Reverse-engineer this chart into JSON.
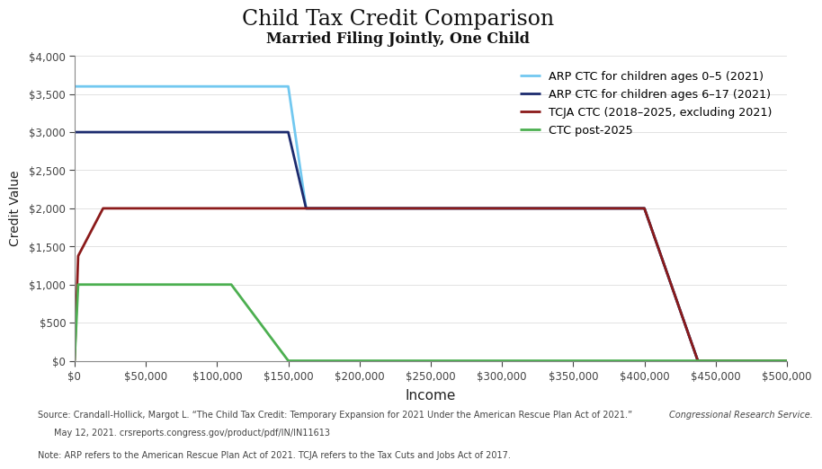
{
  "title": "Child Tax Credit Comparison",
  "subtitle": "Married Filing Jointly, One Child",
  "xlabel": "Income",
  "ylabel": "Credit Value",
  "source_line1": "Source: Crandall-Hollick, Margot L. “The Child Tax Credit: Temporary Expansion for 2021 Under the American Rescue Plan Act of 2021.”",
  "source_italic": "Congressional Research Service.",
  "source_line2": "    May 12, 2021. crsreports.congress.gov/product/pdf/IN/IN11613",
  "note_text": "Note: ARP refers to the American Rescue Plan Act of 2021. TCJA refers to the Tax Cuts and Jobs Act of 2017.",
  "xlim": [
    0,
    500000
  ],
  "ylim": [
    0,
    4000
  ],
  "series": [
    {
      "label": "ARP CTC for children ages 0–5 (2021)",
      "color": "#72C8F0",
      "linewidth": 2.0,
      "x": [
        0,
        150000,
        162500,
        400000,
        437500,
        500000
      ],
      "y": [
        3600,
        3600,
        2000,
        2000,
        0,
        0
      ]
    },
    {
      "label": "ARP CTC for children ages 6–17 (2021)",
      "color": "#1C2B6E",
      "linewidth": 2.0,
      "x": [
        0,
        150000,
        162500,
        400000,
        437500,
        500000
      ],
      "y": [
        3000,
        3000,
        2000,
        2000,
        0,
        0
      ]
    },
    {
      "label": "TCJA CTC (2018–2025, excluding 2021)",
      "color": "#8B1A1A",
      "linewidth": 2.0,
      "x": [
        0,
        2500,
        20000,
        400000,
        437500,
        500000
      ],
      "y": [
        0,
        1375,
        2000,
        2000,
        0,
        0
      ]
    },
    {
      "label": "CTC post-2025",
      "color": "#4CAF50",
      "linewidth": 2.0,
      "x": [
        0,
        2500,
        110000,
        150000,
        500000
      ],
      "y": [
        0,
        1000,
        1000,
        0,
        0
      ]
    }
  ],
  "yticks": [
    0,
    500,
    1000,
    1500,
    2000,
    2500,
    3000,
    3500,
    4000
  ],
  "xticks": [
    0,
    50000,
    100000,
    150000,
    200000,
    250000,
    300000,
    350000,
    400000,
    450000,
    500000
  ],
  "background_color": "#FFFFFF"
}
